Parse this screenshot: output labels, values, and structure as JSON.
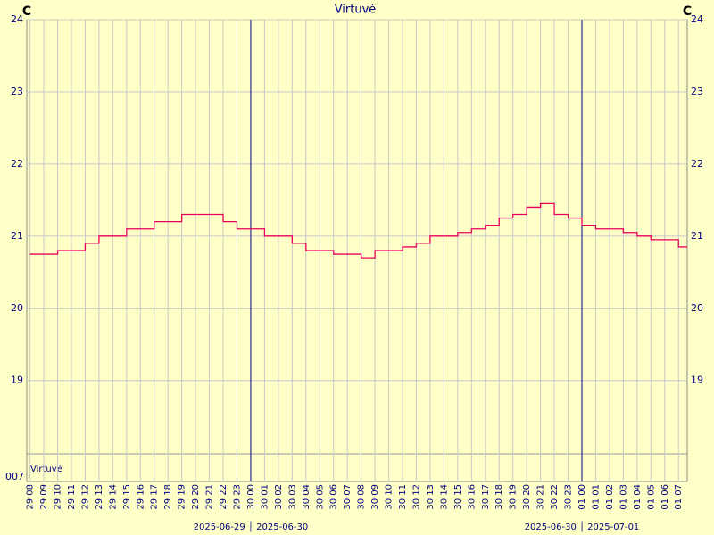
{
  "chart_data": {
    "type": "line",
    "title": "Virtuvė",
    "unit": "C",
    "legend": "Virtuvė",
    "bottom_label": "007",
    "categories": [
      "29 08",
      "29 09",
      "29 10",
      "29 11",
      "29 12",
      "29 13",
      "29 14",
      "29 15",
      "29 16",
      "29 17",
      "29 18",
      "29 19",
      "29 20",
      "29 21",
      "29 22",
      "29 23",
      "30 00",
      "30 01",
      "30 02",
      "30 03",
      "30 04",
      "30 05",
      "30 06",
      "30 07",
      "30 08",
      "30 09",
      "30 10",
      "30 11",
      "30 12",
      "30 13",
      "30 14",
      "30 15",
      "30 16",
      "30 17",
      "30 18",
      "30 19",
      "30 20",
      "30 21",
      "30 22",
      "30 23",
      "01 00",
      "01 01",
      "01 02",
      "01 03",
      "01 04",
      "01 05",
      "01 06",
      "01 07"
    ],
    "series": [
      {
        "name": "Virtuvė",
        "color": "#e8005a",
        "values": [
          20.75,
          20.75,
          20.8,
          20.8,
          20.9,
          21.0,
          21.0,
          21.1,
          21.1,
          21.2,
          21.2,
          21.3,
          21.3,
          21.3,
          21.2,
          21.1,
          21.1,
          21.0,
          21.0,
          20.9,
          20.8,
          20.8,
          20.75,
          20.75,
          20.7,
          20.8,
          20.8,
          20.85,
          20.9,
          21.0,
          21.0,
          21.05,
          21.1,
          21.15,
          21.25,
          21.3,
          21.4,
          21.45,
          21.3,
          21.25,
          21.15,
          21.1,
          21.1,
          21.05,
          21.0,
          20.95,
          20.95,
          20.85
        ]
      }
    ],
    "ylim": [
      17.6,
      24
    ],
    "yticks": [
      19,
      20,
      21,
      22,
      23,
      24
    ],
    "grid": true,
    "date_labels": [
      {
        "category": "30 00",
        "label": "2025-06-29 │ 2025-06-30"
      },
      {
        "category": "01 00",
        "label": "2025-06-30 │ 2025-07-01"
      }
    ]
  }
}
